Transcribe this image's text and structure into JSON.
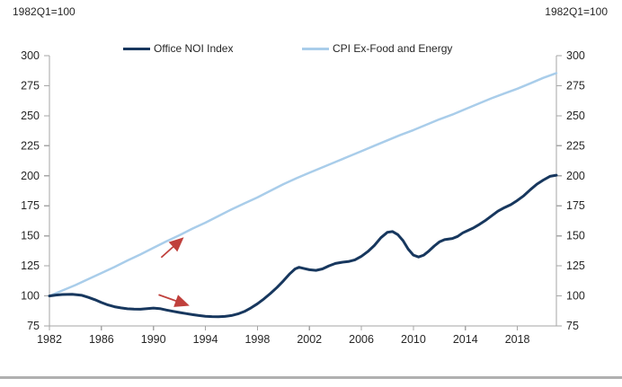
{
  "chart_data": {
    "type": "line",
    "title_left": "1982Q1=100",
    "title_right": "1982Q1=100",
    "xlabel": "",
    "ylabel": "",
    "xlim": [
      1982,
      2021
    ],
    "ylim": [
      75,
      300
    ],
    "x_ticks": [
      1982,
      1986,
      1990,
      1994,
      1998,
      2002,
      2006,
      2010,
      2014,
      2018
    ],
    "y_ticks": [
      75,
      100,
      125,
      150,
      175,
      200,
      225,
      250,
      275,
      300
    ],
    "grid": false,
    "legend_position": "top-center",
    "axis_color": "#a6a6a6",
    "label_color": "#262626",
    "series": [
      {
        "name": "Office NOI Index",
        "color": "#17375e",
        "width": 3,
        "points": [
          [
            1982,
            100
          ],
          [
            1982.5,
            100.7
          ],
          [
            1983,
            101.2
          ],
          [
            1983.75,
            101.3
          ],
          [
            1984.5,
            100.5
          ],
          [
            1985,
            98.8
          ],
          [
            1985.5,
            96.8
          ],
          [
            1986,
            94.5
          ],
          [
            1986.5,
            92.5
          ],
          [
            1987,
            91
          ],
          [
            1987.5,
            90
          ],
          [
            1988,
            89.3
          ],
          [
            1988.5,
            89
          ],
          [
            1989,
            88.9
          ],
          [
            1989.5,
            89.4
          ],
          [
            1990,
            89.9
          ],
          [
            1990.5,
            89.4
          ],
          [
            1991,
            88.2
          ],
          [
            1991.5,
            87.2
          ],
          [
            1992,
            86.2
          ],
          [
            1992.5,
            85.3
          ],
          [
            1993,
            84.4
          ],
          [
            1993.5,
            83.7
          ],
          [
            1994,
            83.1
          ],
          [
            1994.5,
            82.8
          ],
          [
            1995,
            82.7
          ],
          [
            1995.5,
            82.9
          ],
          [
            1996,
            83.7
          ],
          [
            1996.5,
            85
          ],
          [
            1997,
            87
          ],
          [
            1997.5,
            90
          ],
          [
            1998,
            93.5
          ],
          [
            1998.5,
            97.5
          ],
          [
            1999,
            102
          ],
          [
            1999.5,
            107
          ],
          [
            2000,
            112.5
          ],
          [
            2000.5,
            118.5
          ],
          [
            2000.9,
            122.5
          ],
          [
            2001.2,
            123.8
          ],
          [
            2001.6,
            122.8
          ],
          [
            2002,
            121.8
          ],
          [
            2002.5,
            121.3
          ],
          [
            2003,
            122.5
          ],
          [
            2003.5,
            125
          ],
          [
            2004,
            127
          ],
          [
            2004.5,
            128
          ],
          [
            2005,
            128.6
          ],
          [
            2005.5,
            130
          ],
          [
            2006,
            133
          ],
          [
            2006.5,
            137
          ],
          [
            2007,
            142
          ],
          [
            2007.5,
            148.5
          ],
          [
            2008,
            153
          ],
          [
            2008.4,
            153.6
          ],
          [
            2008.8,
            151
          ],
          [
            2009.2,
            146
          ],
          [
            2009.6,
            139
          ],
          [
            2010,
            134
          ],
          [
            2010.4,
            132.4
          ],
          [
            2010.8,
            134
          ],
          [
            2011.2,
            137.5
          ],
          [
            2011.6,
            141.5
          ],
          [
            2012,
            145
          ],
          [
            2012.4,
            146.8
          ],
          [
            2013,
            147.8
          ],
          [
            2013.4,
            149.5
          ],
          [
            2013.8,
            152.5
          ],
          [
            2014.2,
            154.5
          ],
          [
            2014.6,
            156.5
          ],
          [
            2015,
            159
          ],
          [
            2015.5,
            162.5
          ],
          [
            2016,
            166.5
          ],
          [
            2016.5,
            170.5
          ],
          [
            2017,
            173.5
          ],
          [
            2017.5,
            176
          ],
          [
            2018,
            179.5
          ],
          [
            2018.5,
            183.5
          ],
          [
            2019,
            188.5
          ],
          [
            2019.5,
            193
          ],
          [
            2020,
            196.5
          ],
          [
            2020.5,
            199.5
          ],
          [
            2021,
            200.5
          ]
        ]
      },
      {
        "name": "CPI Ex-Food and Energy",
        "color": "#a9cdea",
        "width": 2.5,
        "points": [
          [
            1982,
            100
          ],
          [
            1983,
            104.5
          ],
          [
            1984,
            109
          ],
          [
            1985,
            114
          ],
          [
            1986,
            119
          ],
          [
            1987,
            124
          ],
          [
            1988,
            129.5
          ],
          [
            1989,
            134.5
          ],
          [
            1990,
            140
          ],
          [
            1991,
            145.5
          ],
          [
            1992,
            150.5
          ],
          [
            1993,
            156
          ],
          [
            1994,
            161
          ],
          [
            1995,
            166.5
          ],
          [
            1996,
            172
          ],
          [
            1997,
            177
          ],
          [
            1998,
            182
          ],
          [
            1999,
            187.5
          ],
          [
            2000,
            193
          ],
          [
            2001,
            198
          ],
          [
            2002,
            202.5
          ],
          [
            2003,
            207
          ],
          [
            2004,
            211.5
          ],
          [
            2005,
            216
          ],
          [
            2006,
            220.5
          ],
          [
            2007,
            225
          ],
          [
            2008,
            229.5
          ],
          [
            2009,
            234
          ],
          [
            2010,
            238
          ],
          [
            2011,
            242.5
          ],
          [
            2012,
            247
          ],
          [
            2013,
            251
          ],
          [
            2014,
            255.5
          ],
          [
            2015,
            260
          ],
          [
            2016,
            264.5
          ],
          [
            2017,
            268.5
          ],
          [
            2018,
            272.5
          ],
          [
            2019,
            277
          ],
          [
            2020,
            281.5
          ],
          [
            2021,
            285.5
          ]
        ]
      }
    ],
    "annotations": [
      {
        "type": "arrow",
        "color": "#c0403c",
        "from": [
          1990.6,
          132
        ],
        "to": [
          1992.2,
          147.5
        ]
      },
      {
        "type": "arrow",
        "color": "#c0403c",
        "from": [
          1990.4,
          101
        ],
        "to": [
          1992.6,
          92.5
        ]
      }
    ]
  }
}
